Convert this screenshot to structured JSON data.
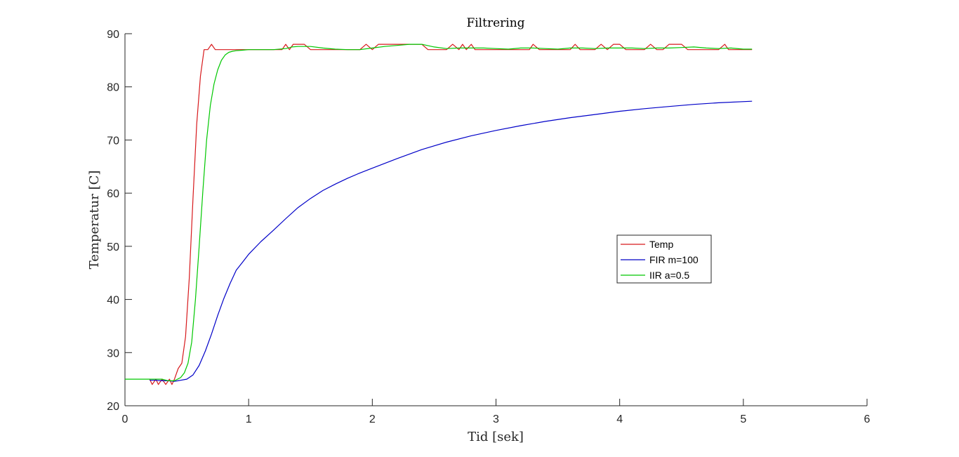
{
  "chart_data": {
    "type": "line",
    "title": "Filtrering",
    "xlabel": "Tid [sek]",
    "ylabel": "Temperatur [C]",
    "xlim": [
      0,
      6
    ],
    "ylim": [
      20,
      90
    ],
    "xticks": [
      0,
      1,
      2,
      3,
      4,
      5,
      6
    ],
    "yticks": [
      20,
      30,
      40,
      50,
      60,
      70,
      80,
      90
    ],
    "grid": false,
    "legend_position": "center-right",
    "series": [
      {
        "name": "Temp",
        "color": "#d7191c",
        "x": [
          0.2,
          0.22,
          0.25,
          0.27,
          0.3,
          0.33,
          0.36,
          0.38,
          0.4,
          0.43,
          0.46,
          0.49,
          0.52,
          0.55,
          0.58,
          0.61,
          0.64,
          0.67,
          0.7,
          0.73,
          0.76,
          0.79,
          0.82,
          0.85,
          0.88,
          0.92,
          1.0,
          1.1,
          1.2,
          1.27,
          1.3,
          1.33,
          1.36,
          1.4,
          1.45,
          1.5,
          1.55,
          1.6,
          1.7,
          1.8,
          1.9,
          1.95,
          2.0,
          2.05,
          2.1,
          2.2,
          2.3,
          2.35,
          2.4,
          2.45,
          2.5,
          2.6,
          2.65,
          2.7,
          2.73,
          2.76,
          2.8,
          2.83,
          2.86,
          2.9,
          2.95,
          3.0,
          3.1,
          3.2,
          3.27,
          3.3,
          3.35,
          3.4,
          3.5,
          3.6,
          3.64,
          3.68,
          3.72,
          3.8,
          3.85,
          3.9,
          3.95,
          4.0,
          4.05,
          4.1,
          4.2,
          4.25,
          4.3,
          4.35,
          4.4,
          4.45,
          4.5,
          4.55,
          4.6,
          4.65,
          4.7,
          4.8,
          4.85,
          4.88,
          4.92,
          5.0,
          5.07
        ],
        "values": [
          25,
          24,
          25,
          24,
          25,
          24,
          25,
          24,
          25,
          27,
          28,
          33,
          44,
          59,
          73,
          82,
          87,
          87,
          88,
          87,
          87,
          87,
          87,
          87,
          87,
          87,
          87,
          87,
          87,
          87,
          88,
          87,
          88,
          88,
          88,
          87,
          87,
          87,
          87,
          87,
          87,
          88,
          87,
          88,
          88,
          88,
          88,
          88,
          88,
          87,
          87,
          87,
          88,
          87,
          88,
          87,
          88,
          87,
          87,
          87,
          87,
          87,
          87,
          87,
          87,
          88,
          87,
          87,
          87,
          87,
          88,
          87,
          87,
          87,
          88,
          87,
          88,
          88,
          87,
          87,
          87,
          88,
          87,
          87,
          88,
          88,
          88,
          87,
          87,
          87,
          87,
          87,
          88,
          87,
          87,
          87,
          87
        ]
      },
      {
        "name": "FIR m=100",
        "color": "#0000c8",
        "x": [
          0.2,
          0.25,
          0.3,
          0.35,
          0.4,
          0.45,
          0.5,
          0.55,
          0.6,
          0.65,
          0.7,
          0.75,
          0.8,
          0.85,
          0.9,
          0.95,
          1.0,
          1.1,
          1.2,
          1.3,
          1.4,
          1.5,
          1.6,
          1.7,
          1.8,
          1.9,
          2.0,
          2.2,
          2.4,
          2.6,
          2.8,
          3.0,
          3.2,
          3.4,
          3.6,
          3.8,
          4.0,
          4.2,
          4.4,
          4.6,
          4.8,
          5.07
        ],
        "values": [
          24.8,
          24.8,
          24.7,
          24.7,
          24.6,
          24.8,
          25.0,
          25.8,
          27.6,
          30.3,
          33.5,
          37.0,
          40.2,
          43.0,
          45.5,
          47.0,
          48.5,
          50.9,
          53.0,
          55.2,
          57.3,
          59.0,
          60.5,
          61.7,
          62.8,
          63.8,
          64.7,
          66.5,
          68.2,
          69.6,
          70.8,
          71.8,
          72.7,
          73.5,
          74.2,
          74.8,
          75.4,
          75.9,
          76.3,
          76.7,
          77.0,
          77.3
        ]
      },
      {
        "name": "IIR a=0.5",
        "color": "#00c800",
        "x": [
          0.0,
          0.1,
          0.2,
          0.3,
          0.35,
          0.4,
          0.45,
          0.48,
          0.51,
          0.54,
          0.57,
          0.6,
          0.63,
          0.66,
          0.69,
          0.72,
          0.75,
          0.78,
          0.81,
          0.84,
          0.87,
          0.9,
          0.95,
          1.0,
          1.1,
          1.2,
          1.3,
          1.35,
          1.4,
          1.5,
          1.6,
          1.7,
          1.8,
          1.9,
          2.0,
          2.1,
          2.2,
          2.3,
          2.4,
          2.5,
          2.6,
          2.7,
          2.8,
          2.9,
          3.0,
          3.1,
          3.2,
          3.3,
          3.4,
          3.5,
          3.6,
          3.7,
          3.8,
          3.9,
          4.0,
          4.1,
          4.2,
          4.3,
          4.4,
          4.5,
          4.6,
          4.7,
          4.8,
          4.9,
          5.0,
          5.07
        ],
        "values": [
          25,
          25,
          25,
          25,
          24.7,
          24.7,
          25.3,
          26.2,
          28.0,
          32.0,
          40.0,
          50.0,
          60.5,
          70.0,
          76.5,
          80.5,
          83.2,
          85.0,
          86.0,
          86.5,
          86.7,
          86.8,
          86.9,
          87,
          87,
          87,
          87.2,
          87.5,
          87.6,
          87.6,
          87.3,
          87.1,
          87,
          87,
          87.3,
          87.6,
          87.8,
          88,
          88,
          87.5,
          87.2,
          87.3,
          87.3,
          87.3,
          87.2,
          87.1,
          87.3,
          87.3,
          87.2,
          87.1,
          87.3,
          87.3,
          87.2,
          87.3,
          87.3,
          87.3,
          87.2,
          87.3,
          87.3,
          87.4,
          87.5,
          87.3,
          87.2,
          87.3,
          87.1,
          87.1
        ]
      }
    ]
  }
}
